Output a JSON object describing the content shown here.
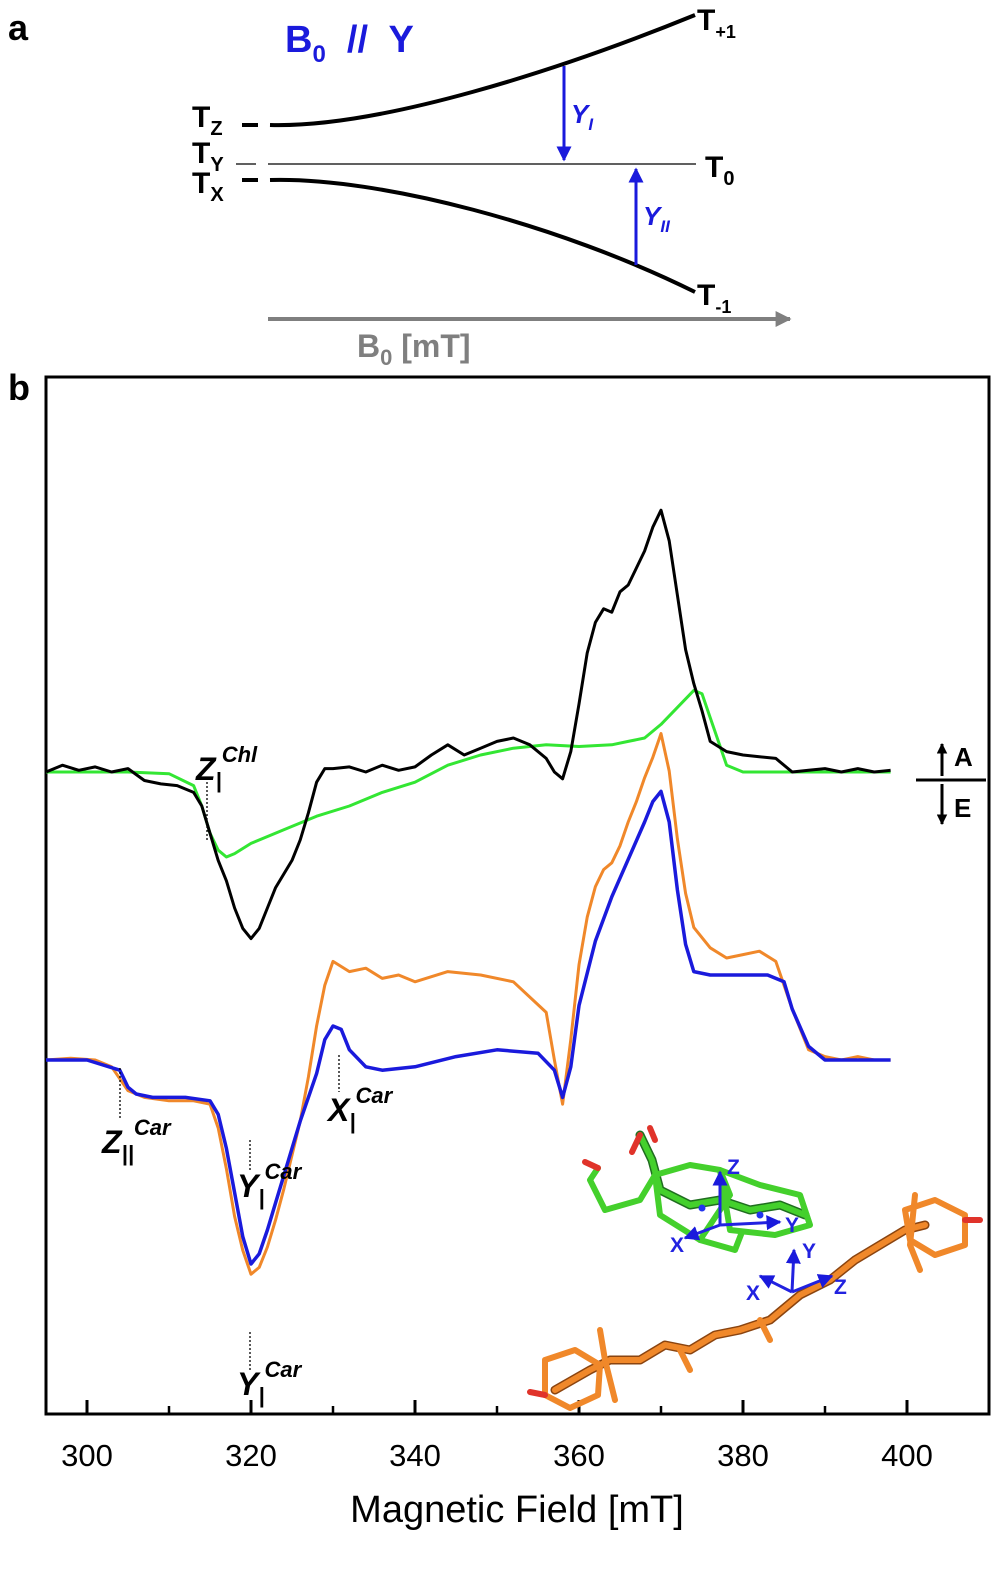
{
  "panel_a": {
    "label": "a",
    "title_main": "B",
    "title_sub": "0",
    "title_rest": "  //  Y",
    "levels_left": [
      {
        "main": "T",
        "sub": "Z"
      },
      {
        "main": "T",
        "sub": "Y"
      },
      {
        "main": "T",
        "sub": "X"
      }
    ],
    "levels_right": [
      {
        "main": "T",
        "sub": "+1"
      },
      {
        "main": "T",
        "sub": "0"
      },
      {
        "main": "T",
        "sub": "-1"
      }
    ],
    "transition_1": {
      "main": "Y",
      "sub": "I"
    },
    "transition_2": {
      "main": "Y",
      "sub": "II"
    },
    "arrow_label_main": "B",
    "arrow_label_sub": "0",
    "arrow_label_rest": " [mT]",
    "colors": {
      "transition": "#1a1adc",
      "field_arrow": "#7f7f7f"
    }
  },
  "panel_b": {
    "label": "b",
    "sign_up": "A",
    "sign_down": "E",
    "annotations": {
      "z_chl": {
        "main": "Z",
        "sub": "|",
        "sup": "Chl"
      },
      "z_car": {
        "main": "Z",
        "sub": "||",
        "sup": "Car"
      },
      "y_car_upper": {
        "main": "Y",
        "sub": "|",
        "sup": "Car"
      },
      "x_car": {
        "main": "X",
        "sub": "|",
        "sup": "Car"
      },
      "y_car_lower": {
        "main": "Y",
        "sub": "|",
        "sup": "Car"
      }
    },
    "inset_axes": {
      "chl": {
        "x": "X",
        "y": "Y",
        "z": "Z"
      },
      "car": {
        "x": "X",
        "y": "Y",
        "z": "Z"
      }
    }
  },
  "chart_data": {
    "type": "line",
    "title": "",
    "xlabel": "Magnetic Field [mT]",
    "ylabel": "",
    "xlim": [
      295,
      410
    ],
    "xticks": [
      300,
      320,
      340,
      360,
      380,
      400
    ],
    "grid": false,
    "legend": "none",
    "series": [
      {
        "color": "#000000",
        "x": [
          295,
          297,
          299,
          301,
          303,
          305,
          307,
          309,
          311,
          313,
          314,
          315,
          316,
          317,
          318,
          319,
          320,
          321,
          322,
          323,
          324,
          325,
          326,
          327,
          328,
          329,
          330,
          332,
          334,
          336,
          338,
          340,
          342,
          344,
          346,
          348,
          350,
          352,
          354,
          356,
          357,
          358,
          359,
          360,
          361,
          362,
          363,
          364,
          365,
          366,
          367,
          368,
          369,
          370,
          371,
          372,
          373,
          374,
          375,
          376,
          378,
          380,
          382,
          384,
          386,
          388,
          390,
          392,
          394,
          396,
          398
        ],
        "y": [
          0.0,
          0.2,
          0.05,
          0.15,
          0.0,
          0.1,
          -0.25,
          -0.35,
          -0.4,
          -0.6,
          -1.0,
          -1.8,
          -2.6,
          -3.2,
          -4.0,
          -4.6,
          -4.9,
          -4.6,
          -4.0,
          -3.4,
          -3.0,
          -2.6,
          -2.0,
          -1.2,
          -0.3,
          0.1,
          0.1,
          0.15,
          0.0,
          0.2,
          0.05,
          0.15,
          0.5,
          0.8,
          0.5,
          0.7,
          0.9,
          1.0,
          0.8,
          0.4,
          0.0,
          -0.2,
          0.6,
          2.0,
          3.5,
          4.4,
          4.8,
          4.7,
          5.3,
          5.5,
          6.0,
          6.5,
          7.2,
          7.7,
          6.8,
          5.2,
          3.6,
          2.6,
          1.8,
          0.9,
          0.6,
          0.5,
          0.45,
          0.4,
          0.0,
          0.05,
          0.1,
          0.0,
          0.1,
          0.0,
          0.05
        ]
      },
      {
        "color": "#33e633",
        "x": [
          295,
          300,
          305,
          310,
          313,
          314,
          315,
          316,
          317,
          318,
          320,
          324,
          328,
          332,
          336,
          340,
          344,
          348,
          352,
          356,
          360,
          364,
          366,
          368,
          370,
          372,
          374,
          375,
          376,
          378,
          380,
          385,
          390,
          395,
          398
        ],
        "y": [
          0.0,
          0.0,
          0.0,
          -0.05,
          -0.4,
          -1.0,
          -1.8,
          -2.3,
          -2.5,
          -2.4,
          -2.1,
          -1.7,
          -1.3,
          -1.0,
          -0.6,
          -0.3,
          0.2,
          0.5,
          0.7,
          0.8,
          0.75,
          0.8,
          0.9,
          1.0,
          1.4,
          1.9,
          2.4,
          2.3,
          1.6,
          0.2,
          0.0,
          0.0,
          0.0,
          0.0,
          0.0
        ]
      },
      {
        "color": "#f0882a",
        "x": [
          295,
          298,
          301,
          303,
          305,
          307,
          310,
          313,
          315,
          316,
          317,
          318,
          319,
          320,
          321,
          322,
          323,
          324,
          325,
          326,
          327,
          328,
          329,
          330,
          332,
          334,
          336,
          338,
          340,
          344,
          348,
          352,
          356,
          357,
          358,
          359,
          360,
          361,
          362,
          363,
          364,
          365,
          366,
          367,
          368,
          369,
          370,
          371,
          372,
          373,
          374,
          376,
          378,
          380,
          382,
          384,
          386,
          388,
          390,
          392,
          394,
          396,
          398
        ],
        "y": [
          0.0,
          0.05,
          0.0,
          -0.2,
          -0.9,
          -1.1,
          -1.2,
          -1.2,
          -1.3,
          -2.0,
          -3.2,
          -4.6,
          -5.6,
          -6.3,
          -6.1,
          -5.5,
          -4.7,
          -3.8,
          -2.8,
          -1.8,
          -0.5,
          1.0,
          2.2,
          2.9,
          2.6,
          2.7,
          2.4,
          2.5,
          2.3,
          2.6,
          2.5,
          2.3,
          1.4,
          0.0,
          -1.3,
          0.6,
          2.8,
          4.2,
          5.1,
          5.6,
          5.8,
          6.3,
          7.0,
          7.6,
          8.3,
          8.9,
          9.6,
          8.5,
          6.5,
          4.9,
          3.9,
          3.3,
          3.0,
          3.1,
          3.2,
          2.9,
          1.5,
          0.3,
          0.1,
          0.0,
          0.1,
          0.0,
          0.0
        ]
      },
      {
        "color": "#1a1adc",
        "x": [
          295,
          300,
          304,
          305,
          306,
          308,
          312,
          315,
          316,
          317,
          318,
          319,
          320,
          321,
          322,
          323,
          324,
          326,
          328,
          329,
          330,
          331,
          332,
          334,
          336,
          340,
          345,
          350,
          355,
          357,
          358,
          359,
          360,
          362,
          364,
          366,
          368,
          369,
          370,
          371,
          372,
          373,
          374,
          376,
          380,
          383,
          385,
          386,
          388,
          390,
          395,
          398
        ],
        "y": [
          0.0,
          0.0,
          -0.3,
          -0.8,
          -1.0,
          -1.1,
          -1.1,
          -1.2,
          -1.6,
          -2.6,
          -3.9,
          -5.2,
          -6.0,
          -5.7,
          -5.0,
          -4.2,
          -3.4,
          -1.8,
          -0.4,
          0.6,
          1.0,
          0.9,
          0.3,
          -0.2,
          -0.3,
          -0.2,
          0.1,
          0.3,
          0.2,
          -0.3,
          -1.1,
          -0.2,
          1.6,
          3.5,
          4.8,
          5.9,
          7.0,
          7.6,
          7.9,
          7.0,
          5.0,
          3.4,
          2.6,
          2.5,
          2.5,
          2.5,
          2.3,
          1.5,
          0.4,
          0.0,
          0.0,
          0.0
        ]
      }
    ]
  }
}
